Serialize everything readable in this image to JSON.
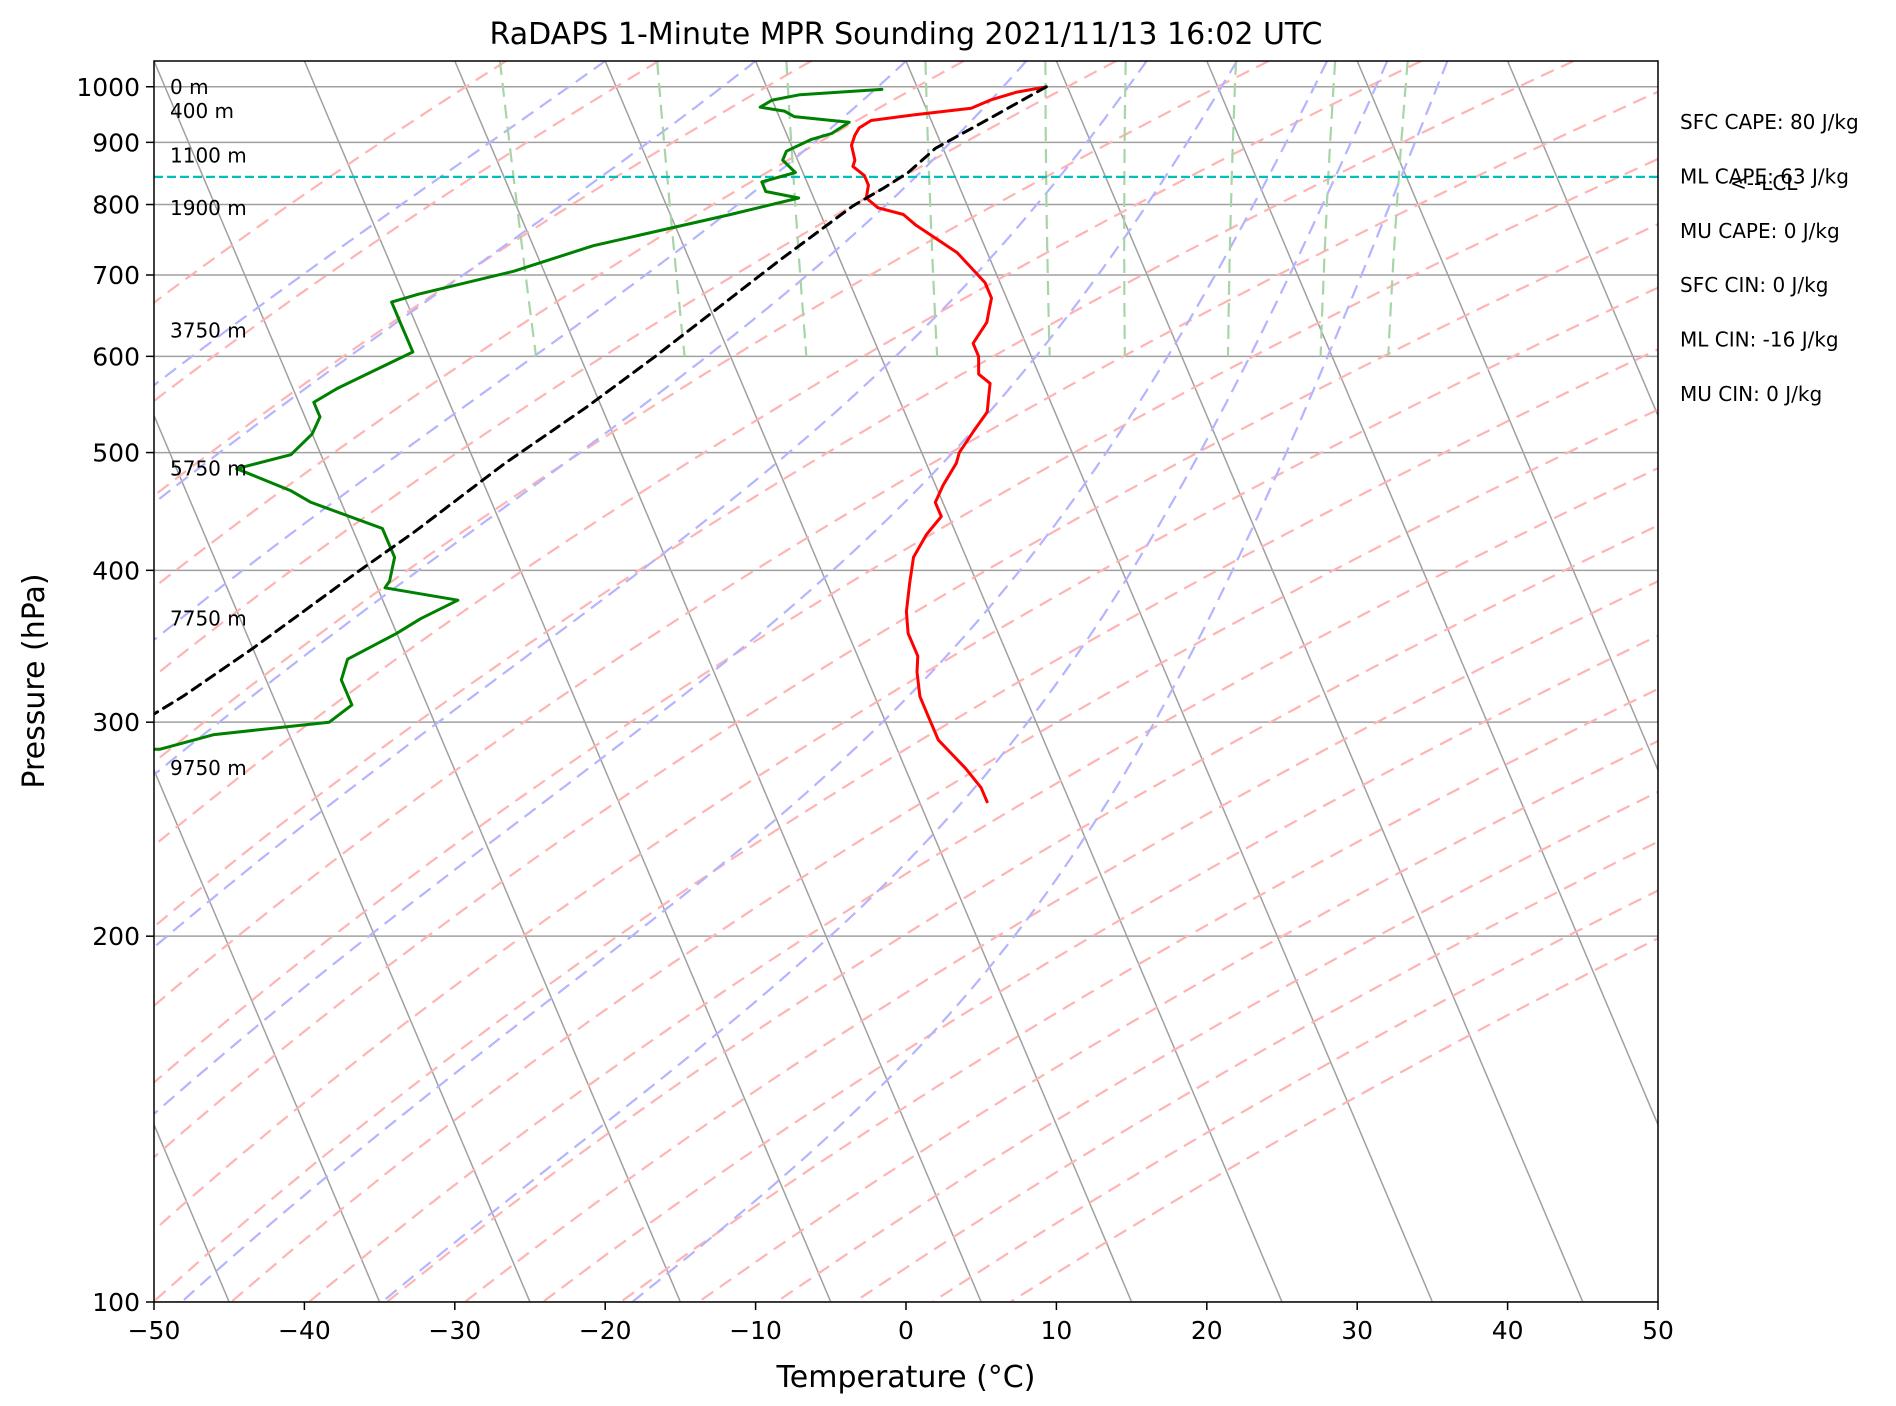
{
  "chart_data": {
    "type": "line",
    "title": "RaDAPS 1-Minute MPR Sounding 2021/11/13 16:02 UTC",
    "xlabel": "Temperature (°C)",
    "ylabel": "Pressure (hPa)",
    "xlim": [
      -50,
      50
    ],
    "ylim": [
      1050,
      100
    ],
    "y_scale": "log",
    "x_ticks": [
      -50,
      -40,
      -30,
      -20,
      -10,
      0,
      10,
      20,
      30,
      40,
      50
    ],
    "x_tick_labels": [
      "−50",
      "−40",
      "−30",
      "−20",
      "−10",
      "0",
      "10",
      "20",
      "30",
      "40",
      "50"
    ],
    "y_ticks": [
      100,
      200,
      300,
      400,
      500,
      600,
      700,
      800,
      900,
      1000
    ],
    "y_tick_labels": [
      "100",
      "200",
      "300",
      "400",
      "500",
      "600",
      "700",
      "800",
      "900",
      "1000"
    ],
    "grid": true,
    "skew": 35,
    "series": [
      {
        "role": "temperature",
        "color": "#ff0000",
        "points": [
          [
            8.6,
            1000
          ],
          [
            6.5,
            990
          ],
          [
            4.5,
            975
          ],
          [
            3.0,
            960
          ],
          [
            -1.0,
            948
          ],
          [
            -4.0,
            938
          ],
          [
            -5.0,
            925
          ],
          [
            -5.5,
            912
          ],
          [
            -6.0,
            895
          ],
          [
            -6.2,
            870
          ],
          [
            -6.5,
            860
          ],
          [
            -6.0,
            845
          ],
          [
            -6.0,
            830
          ],
          [
            -6.5,
            810
          ],
          [
            -6.0,
            795
          ],
          [
            -4.5,
            785
          ],
          [
            -4.0,
            770
          ],
          [
            -3.0,
            750
          ],
          [
            -2.0,
            730
          ],
          [
            -1.5,
            710
          ],
          [
            -1.0,
            690
          ],
          [
            -1.0,
            670
          ],
          [
            -1.5,
            655
          ],
          [
            -2.0,
            640
          ],
          [
            -3.5,
            615
          ],
          [
            -3.5,
            600
          ],
          [
            -4.0,
            580
          ],
          [
            -3.5,
            570
          ],
          [
            -4.0,
            555
          ],
          [
            -4.5,
            540
          ],
          [
            -6.0,
            520
          ],
          [
            -7.5,
            500
          ],
          [
            -8.0,
            490
          ],
          [
            -9.5,
            470
          ],
          [
            -10.5,
            455
          ],
          [
            -10.5,
            443
          ],
          [
            -12.0,
            428
          ],
          [
            -13.5,
            410
          ],
          [
            -14.5,
            390
          ],
          [
            -15.5,
            370
          ],
          [
            -16.0,
            355
          ],
          [
            -16.0,
            340
          ],
          [
            -16.5,
            330
          ],
          [
            -17.0,
            315
          ],
          [
            -17.0,
            303
          ],
          [
            -17.0,
            290
          ],
          [
            -16.0,
            275
          ],
          [
            -15.5,
            265
          ],
          [
            -15.5,
            258
          ]
        ]
      },
      {
        "role": "dewpoint",
        "color": "#008000",
        "points": [
          [
            -2.4,
            995
          ],
          [
            -8.0,
            985
          ],
          [
            -10.0,
            975
          ],
          [
            -11.0,
            962
          ],
          [
            -9.5,
            955
          ],
          [
            -9.0,
            945
          ],
          [
            -5.5,
            935
          ],
          [
            -7.0,
            915
          ],
          [
            -8.5,
            905
          ],
          [
            -10.5,
            885
          ],
          [
            -11.0,
            870
          ],
          [
            -10.5,
            850
          ],
          [
            -13.0,
            835
          ],
          [
            -13.0,
            820
          ],
          [
            -11.0,
            810
          ],
          [
            -16.0,
            785
          ],
          [
            -26.0,
            740
          ],
          [
            -32.0,
            705
          ],
          [
            -39.0,
            675
          ],
          [
            -41.0,
            665
          ],
          [
            -41.0,
            650
          ],
          [
            -41.0,
            635
          ],
          [
            -41.0,
            625
          ],
          [
            -41.0,
            605
          ],
          [
            -47.0,
            565
          ],
          [
            -49.0,
            550
          ],
          [
            -49.0,
            535
          ],
          [
            -50.0,
            518
          ],
          [
            -52.0,
            498
          ],
          [
            -56.0,
            485
          ],
          [
            -53.0,
            465
          ],
          [
            -52.0,
            455
          ],
          [
            -48.0,
            433
          ],
          [
            -48.0,
            410
          ],
          [
            -49.0,
            392
          ],
          [
            -49.5,
            387
          ],
          [
            -45.0,
            378
          ],
          [
            -48.0,
            365
          ],
          [
            -50.0,
            355
          ],
          [
            -54.0,
            338
          ],
          [
            -55.0,
            325
          ],
          [
            -55.0,
            310
          ],
          [
            -57.0,
            300
          ],
          [
            -65.0,
            293
          ],
          [
            -69.0,
            285
          ],
          [
            -79.0,
            285
          ]
        ]
      },
      {
        "role": "parcel",
        "color": "#000000",
        "style": "dashed",
        "points": [
          [
            8.6,
            1000
          ],
          [
            3.8,
            940
          ],
          [
            -0.5,
            890
          ],
          [
            -3.0,
            850
          ],
          [
            -5.1,
            825
          ],
          [
            -7.6,
            798
          ],
          [
            -14.0,
            720
          ],
          [
            -25.0,
            600
          ],
          [
            -31.0,
            545
          ],
          [
            -38.0,
            490
          ],
          [
            -46.0,
            430
          ],
          [
            -51.0,
            398
          ],
          [
            -60.0,
            345
          ],
          [
            -66.0,
            315
          ],
          [
            -72.0,
            290
          ],
          [
            -77.0,
            270
          ],
          [
            -80.0,
            259
          ]
        ]
      }
    ],
    "lcl": {
      "pressure": 843,
      "label": "<--LCL",
      "color": "#00bfbf"
    },
    "height_labels": [
      {
        "text": "9750 m",
        "p": 275
      },
      {
        "text": "7750 m",
        "p": 365
      },
      {
        "text": "5750 m",
        "p": 485
      },
      {
        "text": "3750 m",
        "p": 630
      },
      {
        "text": "1900 m",
        "p": 795
      },
      {
        "text": "1100 m",
        "p": 878
      },
      {
        "text": "400 m",
        "p": 955
      },
      {
        "text": "0 m",
        "p": 1000
      }
    ],
    "stats": [
      "SFC CAPE: 80 J/kg",
      "ML CAPE: 63 J/kg",
      "MU CAPE: 0 J/kg",
      "SFC CIN: 0 J/kg",
      "ML CIN: -16 J/kg",
      "MU CIN: 0 J/kg"
    ],
    "reference_lines": {
      "isotherm_color": "#a0a0a0",
      "dry_adiabat_color": "#ffb4b4",
      "moist_adiabat_color": "#b4b4ff",
      "mixing_ratio_color": "#a8d5a8",
      "mixing_ratio_g_per_kg": [
        0.4,
        1,
        2,
        4,
        7,
        10,
        16,
        24,
        32
      ]
    }
  }
}
